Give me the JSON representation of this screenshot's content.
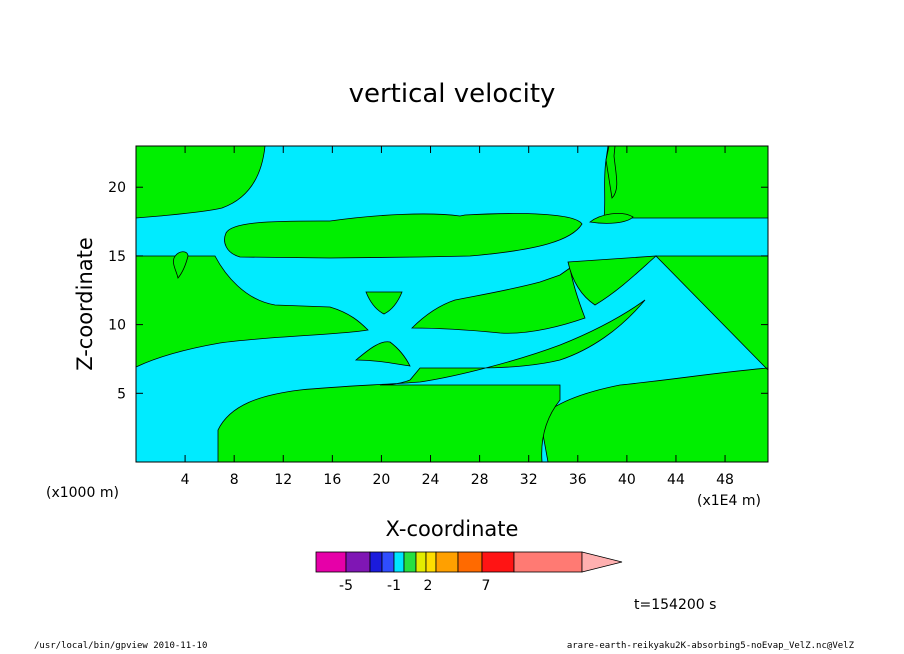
{
  "chart_data": {
    "type": "heatmap",
    "title": "vertical velocity",
    "xlabel": "X-coordinate",
    "ylabel": "Z-coordinate",
    "x_unit": "(x1000 m)",
    "y_unit_note": "(x1E4 m)",
    "xlim": [
      0,
      51.5
    ],
    "ylim": [
      0,
      23
    ],
    "x_ticks": [
      4,
      8,
      12,
      16,
      20,
      24,
      28,
      32,
      36,
      40,
      44,
      48
    ],
    "y_ticks": [
      5,
      10,
      15,
      20
    ],
    "time_label": "t=154200 s",
    "colorbar": {
      "colors": [
        "#e600a8",
        "#7f16b4",
        "#1b1bdc",
        "#2f4dff",
        "#00e5ff",
        "#26e041",
        "#e3ec00",
        "#ffdd00",
        "#ffa000",
        "#ff6a00",
        "#ff1414",
        "#ff7a73",
        "#ffb0b0"
      ],
      "tick_labels": [
        "-5",
        "-1",
        "2",
        "7"
      ]
    },
    "field_colors": {
      "positive": "#00ef00",
      "negative": "#00ebff"
    }
  },
  "footer": {
    "left": "/usr/local/bin/gpview  2010-11-10",
    "right": "arare-earth-reikyaku2K-absorbing5-noEvap_VelZ.nc@VelZ"
  }
}
